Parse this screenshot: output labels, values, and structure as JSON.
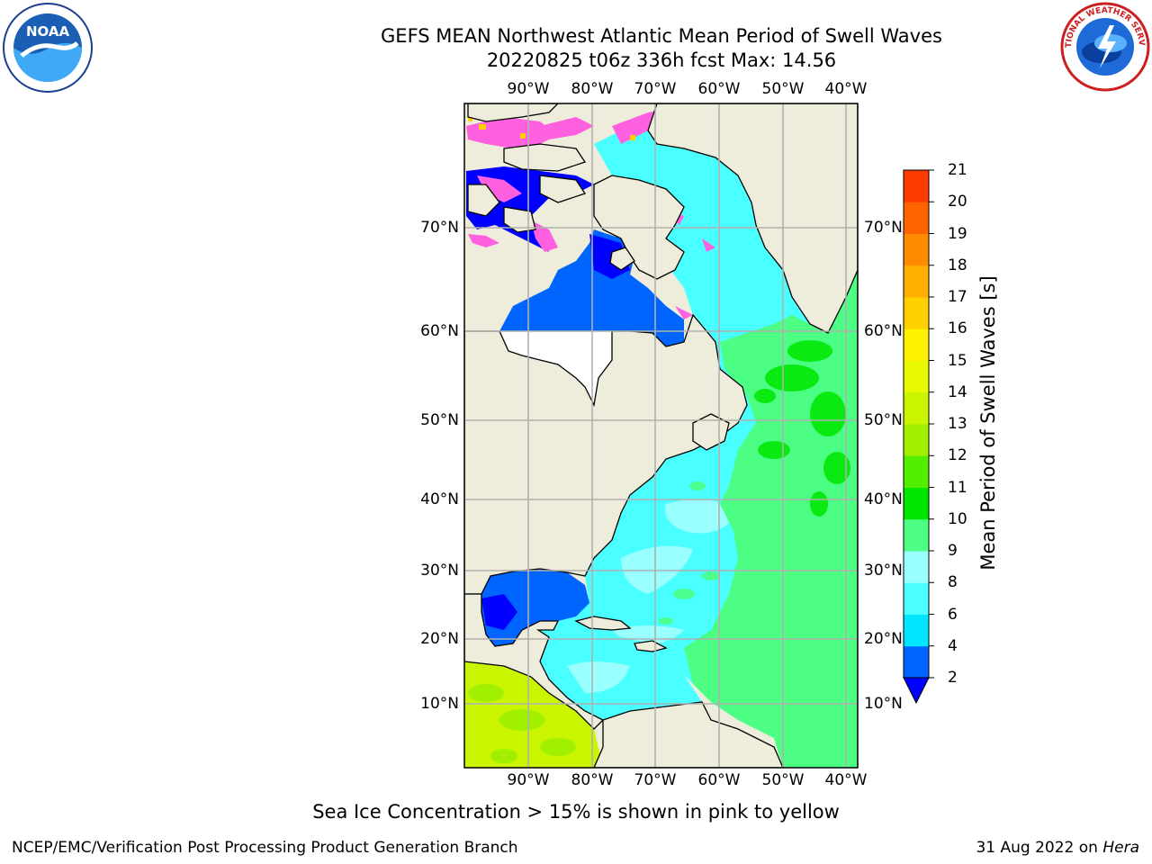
{
  "header": {
    "title_line1": "GEFS MEAN Northwest Atlantic Mean Period of Swell Waves",
    "title_line2": "20220825 t06z 336h fcst   Max: 14.56"
  },
  "logos": {
    "left": "NOAA",
    "right": "NATIONAL WEATHER SERVICE"
  },
  "map": {
    "lon_labels": [
      "90°W",
      "80°W",
      "70°W",
      "60°W",
      "50°W",
      "40°W"
    ],
    "lat_labels": [
      "70°N",
      "60°N",
      "50°N",
      "40°N",
      "30°N",
      "20°N",
      "10°N"
    ]
  },
  "colorbar": {
    "title": "Mean Period of Swell Waves [s]",
    "ticks": [
      "2",
      "4",
      "6",
      "8",
      "9",
      "10",
      "11",
      "12",
      "13",
      "14",
      "15",
      "16",
      "17",
      "18",
      "19",
      "20",
      "21"
    ],
    "colors": [
      "#0064ff",
      "#00e6ff",
      "#4affff",
      "#9affff",
      "#4cff84",
      "#00e600",
      "#52f000",
      "#a0f000",
      "#caf500",
      "#e8f800",
      "#fff000",
      "#ffd000",
      "#ffb000",
      "#ff8c00",
      "#ff6400",
      "#ff3c00",
      "#ff0000"
    ],
    "under_color": "#0000ff"
  },
  "note": "Sea Ice Concentration > 15% is shown in pink to yellow",
  "footer": {
    "left": "NCEP/EMC/Verification Post Processing Product Generation Branch",
    "right_date": "31 Aug 2022 on",
    "right_machine": "Hera"
  },
  "colors": {
    "land": "#eeecda",
    "ocean_low": "#0064ff",
    "ocean_mid": "#4affff",
    "ocean_high": "#4cff84",
    "sea_ice": "#ff60e0",
    "gridline": "#b0b0b0"
  }
}
